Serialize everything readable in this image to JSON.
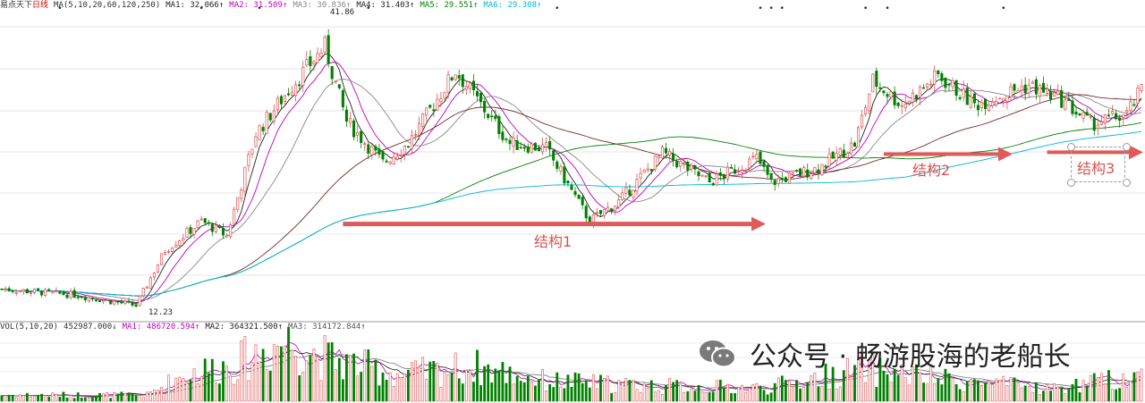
{
  "header": {
    "stock_name": "易点天下",
    "period": "日线",
    "ma_params": "MA(5,10,20,60,120,250)",
    "ma_values": [
      {
        "label": "MA1: 32.066↑",
        "color": "#222222"
      },
      {
        "label": "MA2: 31.509↑",
        "color": "#c000c0"
      },
      {
        "label": "MA3: 30.836↑",
        "color": "#888888"
      },
      {
        "label": "MA4: 31.403↑",
        "color": "#222222"
      },
      {
        "label": "MA5: 29.551↑",
        "color": "#008000"
      },
      {
        "label": "MA6: 29.308↑",
        "color": "#00b8d8"
      }
    ]
  },
  "volume_header": {
    "params": "VOL(5,10,20)",
    "value": "452987.000↓",
    "ma_values": [
      {
        "label": "MA1: 486720.594↑",
        "color": "#c000c0"
      },
      {
        "label": "MA2: 364321.500↑",
        "color": "#222222"
      },
      {
        "label": "MA3: 314172.844↑",
        "color": "#555555"
      }
    ]
  },
  "price_labels": {
    "high": "41.86",
    "low": "12.23"
  },
  "annotations": {
    "structure1": "结构1",
    "structure2": "结构2",
    "structure3": "结构3"
  },
  "watermark": {
    "text": "公众号 · 畅游股海的老船长",
    "icon": "wechat-icon"
  },
  "colors": {
    "up": "#e05050",
    "down": "#008000",
    "arrow": "#e05a5a",
    "ma5": "#222222",
    "ma10": "#c000c0",
    "ma20": "#888888",
    "ma60": "#7a2a2a",
    "ma120": "#008000",
    "ma250": "#00b8d8"
  },
  "chart_data": {
    "type": "candlestick",
    "price_range": [
      11.5,
      43
    ],
    "price_anchors": [
      {
        "i": 0,
        "p": 14.5
      },
      {
        "i": 20,
        "p": 13.9
      },
      {
        "i": 37,
        "p": 12.8
      },
      {
        "i": 45,
        "p": 18.5
      },
      {
        "i": 55,
        "p": 21.5
      },
      {
        "i": 62,
        "p": 20.0
      },
      {
        "i": 70,
        "p": 30.5
      },
      {
        "i": 80,
        "p": 35.5
      },
      {
        "i": 89,
        "p": 39.5
      },
      {
        "i": 95,
        "p": 31.8
      },
      {
        "i": 105,
        "p": 27.5
      },
      {
        "i": 112,
        "p": 29.5
      },
      {
        "i": 125,
        "p": 37.0
      },
      {
        "i": 132,
        "p": 33.5
      },
      {
        "i": 140,
        "p": 29.5
      },
      {
        "i": 150,
        "p": 29.0
      },
      {
        "i": 162,
        "p": 21.5
      },
      {
        "i": 170,
        "p": 23.5
      },
      {
        "i": 182,
        "p": 28.5
      },
      {
        "i": 195,
        "p": 25.5
      },
      {
        "i": 208,
        "p": 28.0
      },
      {
        "i": 212,
        "p": 25.5
      },
      {
        "i": 225,
        "p": 27.0
      },
      {
        "i": 235,
        "p": 29.5
      },
      {
        "i": 240,
        "p": 36.0
      },
      {
        "i": 248,
        "p": 33.5
      },
      {
        "i": 258,
        "p": 36.5
      },
      {
        "i": 268,
        "p": 33.5
      },
      {
        "i": 283,
        "p": 35.5
      },
      {
        "i": 292,
        "p": 34.0
      },
      {
        "i": 300,
        "p": 31.5
      },
      {
        "i": 310,
        "p": 32.5
      },
      {
        "i": 314,
        "p": 35.0
      }
    ],
    "volume_anchors": [
      {
        "i": 0,
        "v": 30
      },
      {
        "i": 40,
        "v": 30
      },
      {
        "i": 50,
        "v": 130
      },
      {
        "i": 65,
        "v": 190
      },
      {
        "i": 78,
        "v": 300
      },
      {
        "i": 90,
        "v": 210
      },
      {
        "i": 110,
        "v": 130
      },
      {
        "i": 130,
        "v": 170
      },
      {
        "i": 150,
        "v": 100
      },
      {
        "i": 180,
        "v": 75
      },
      {
        "i": 210,
        "v": 65
      },
      {
        "i": 238,
        "v": 160
      },
      {
        "i": 260,
        "v": 105
      },
      {
        "i": 290,
        "v": 60
      },
      {
        "i": 314,
        "v": 130
      }
    ],
    "volume_range": [
      0,
      340
    ],
    "bar_count": 315,
    "structure_levels": [
      {
        "name": "结构1",
        "price": 21.2
      },
      {
        "name": "结构2",
        "price": 28.4
      },
      {
        "name": "结构3",
        "price": 28.6
      }
    ]
  }
}
